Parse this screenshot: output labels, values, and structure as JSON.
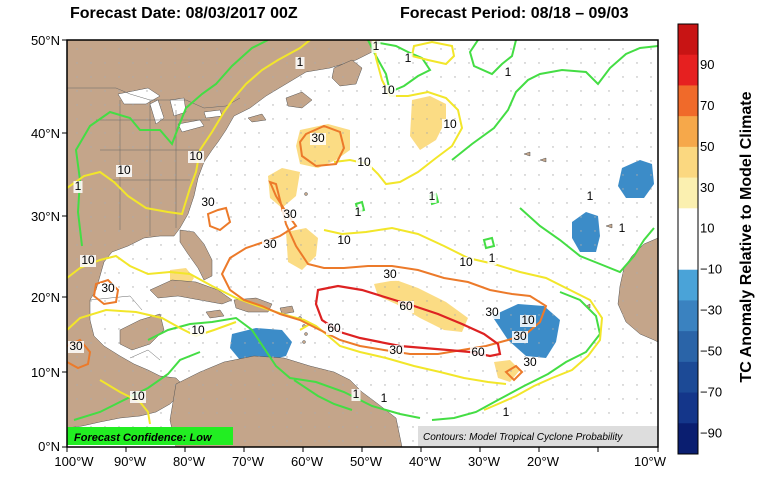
{
  "header": {
    "forecast_date": "Forecast Date: 08/03/2017 00Z",
    "forecast_period": "Forecast Period: 08/18 – 09/03"
  },
  "axes": {
    "lat_ticks": [
      "0°N",
      "10°N",
      "20°N",
      "30°N",
      "40°N",
      "50°N"
    ],
    "lon_ticks": [
      "100°W",
      "90°W",
      "80°W",
      "70°W",
      "60°W",
      "50°W",
      "40°W",
      "30°W",
      "20°W",
      "10°W"
    ]
  },
  "confidence": {
    "label": "Forecast Confidence: Low",
    "color": "#22ee22"
  },
  "contours_note": "Contours: Model Tropical Cyclone Probability",
  "colorbar": {
    "title": "TC Anomaly Relative to Model Climate",
    "labels": [
      "90",
      "70",
      "50",
      "30",
      "10",
      "−10",
      "−30",
      "−50",
      "−70",
      "−90"
    ],
    "colors": [
      "#c81414",
      "#e62020",
      "#f06a2a",
      "#f6a84a",
      "#fbd880",
      "#fbf0b0",
      "#ffffff",
      "#ffffff",
      "#4aa3d8",
      "#3a82c0",
      "#2a64a8",
      "#1c4a96",
      "#14368a",
      "#0a1e70"
    ]
  },
  "contour_labels": [
    {
      "text": "1"
    },
    {
      "text": "1"
    },
    {
      "text": "1"
    },
    {
      "text": "1"
    },
    {
      "text": "1"
    },
    {
      "text": "1"
    },
    {
      "text": "1"
    },
    {
      "text": "1"
    },
    {
      "text": "1"
    },
    {
      "text": "1"
    },
    {
      "text": "1"
    },
    {
      "text": "1"
    },
    {
      "text": "1"
    },
    {
      "text": "10"
    },
    {
      "text": "10"
    },
    {
      "text": "10"
    },
    {
      "text": "10"
    },
    {
      "text": "10"
    },
    {
      "text": "10"
    },
    {
      "text": "10"
    },
    {
      "text": "10"
    },
    {
      "text": "10"
    },
    {
      "text": "10"
    },
    {
      "text": "10"
    },
    {
      "text": "30"
    },
    {
      "text": "30"
    },
    {
      "text": "30"
    },
    {
      "text": "30"
    },
    {
      "text": "30"
    },
    {
      "text": "30"
    },
    {
      "text": "30"
    },
    {
      "text": "30"
    },
    {
      "text": "30"
    },
    {
      "text": "30"
    },
    {
      "text": "30"
    },
    {
      "text": "60"
    },
    {
      "text": "60"
    },
    {
      "text": "60"
    }
  ],
  "colors": {
    "land": "#c4a58a",
    "ocean": "#ffffff",
    "contour_1": "#44dd44",
    "contour_10": "#f2e62a",
    "contour_30": "#ec7a2a",
    "contour_60": "#dd2222",
    "positive_anomaly": "#fbdc84",
    "negative_anomaly": "#3c8cc8"
  }
}
